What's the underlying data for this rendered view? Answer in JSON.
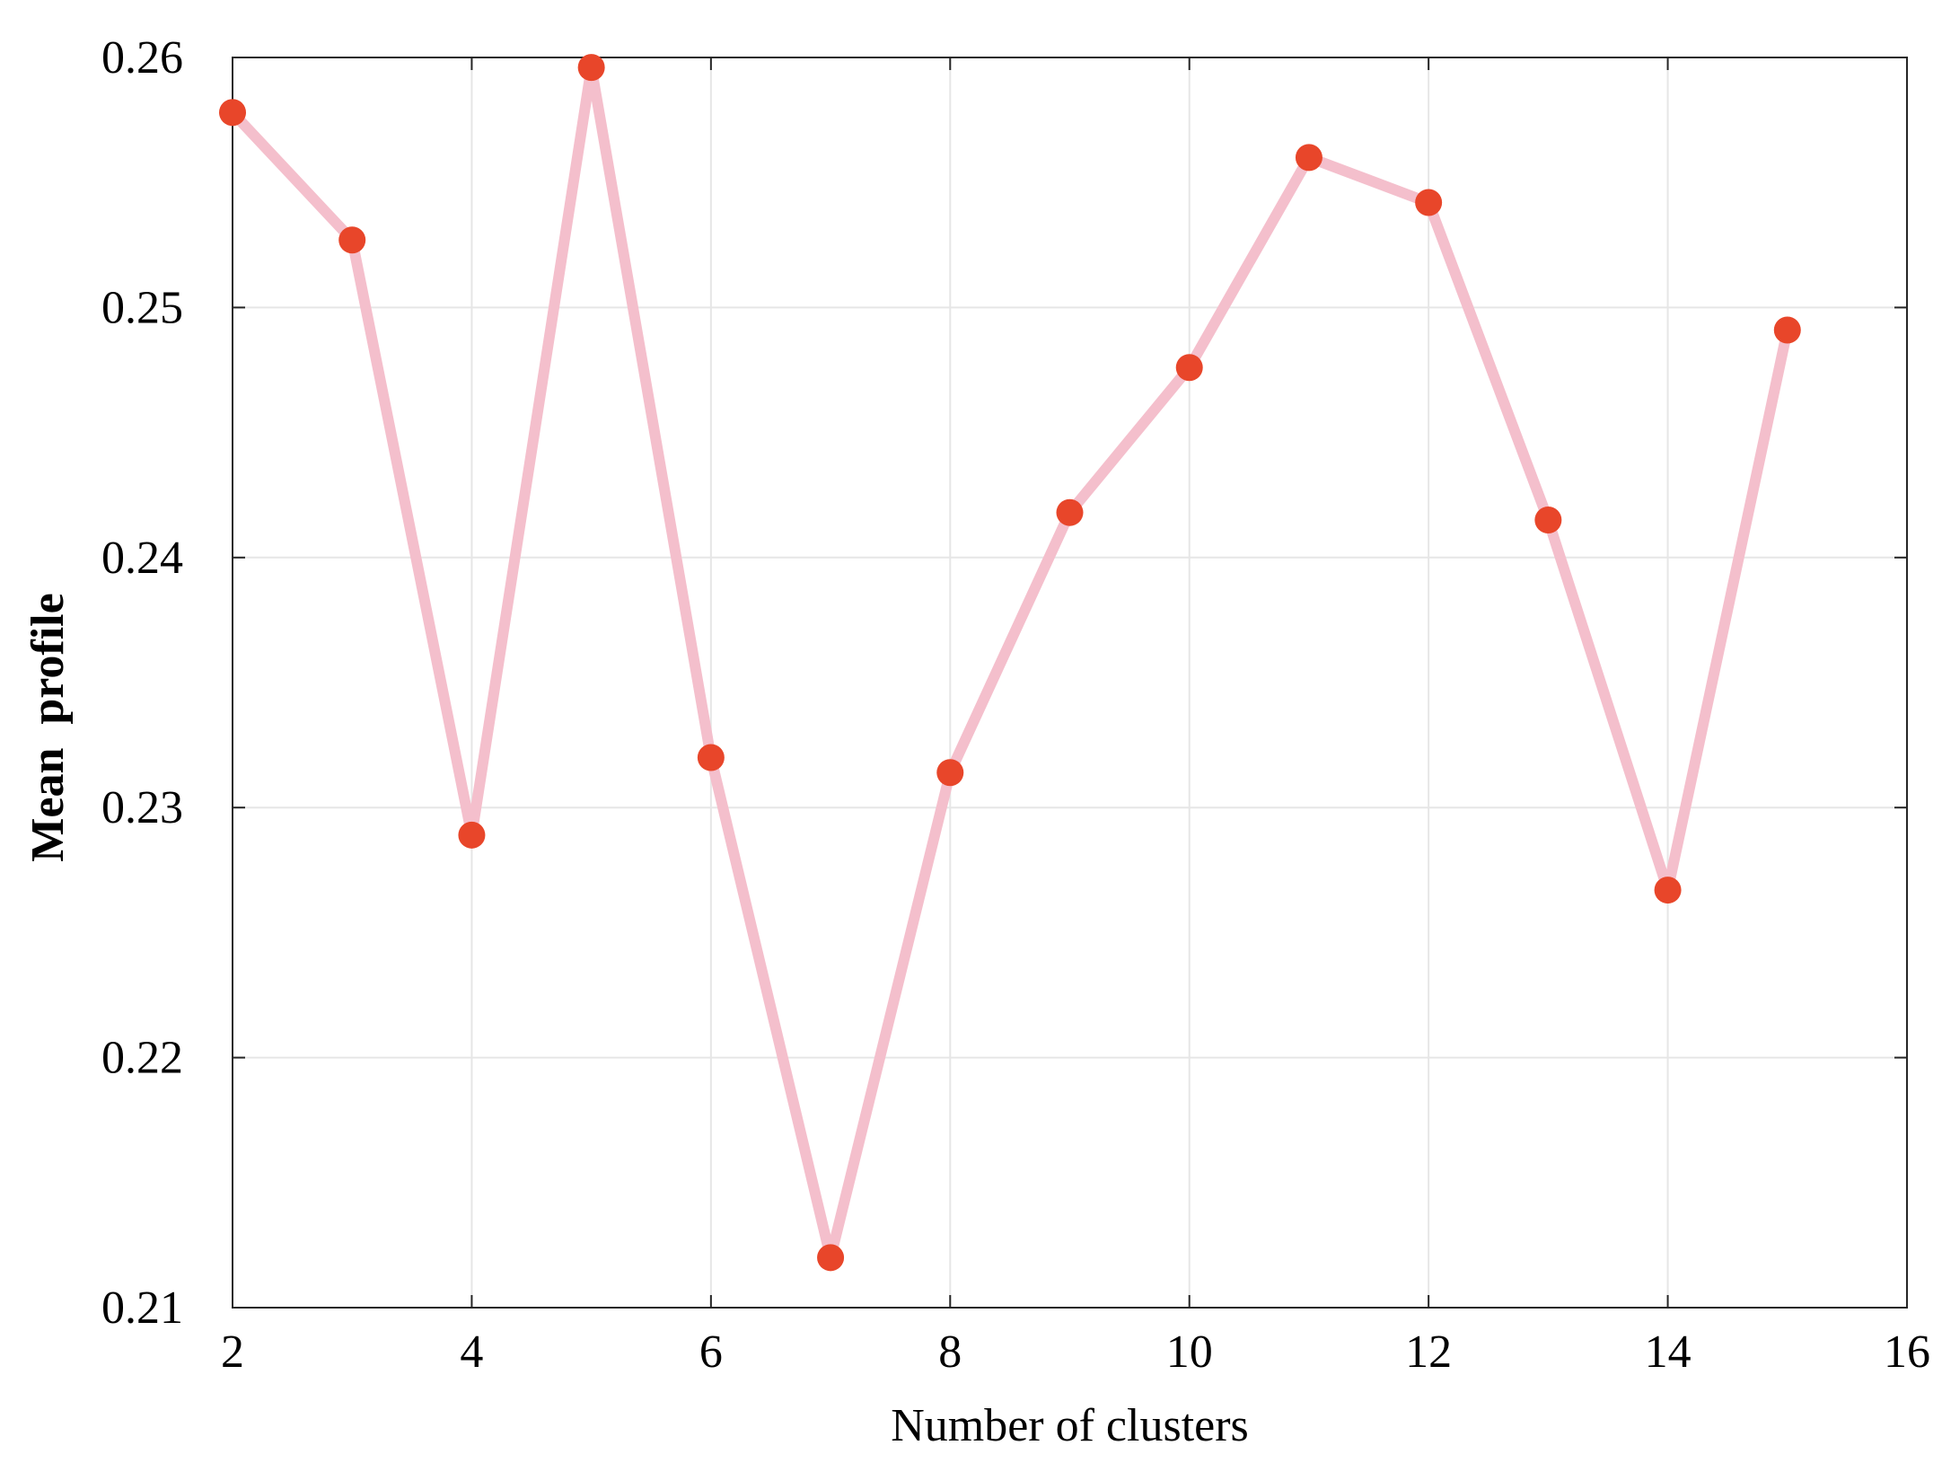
{
  "chart_data": {
    "type": "line",
    "title": "",
    "xlabel": "Number of clusters",
    "ylabel": "Mean  profile",
    "xlim": [
      2,
      16
    ],
    "ylim": [
      0.21,
      0.26
    ],
    "xticks": [
      2,
      4,
      6,
      8,
      10,
      12,
      14,
      16
    ],
    "xtick_labels": [
      "2",
      "4",
      "6",
      "8",
      "10",
      "12",
      "14",
      "16"
    ],
    "yticks": [
      0.21,
      0.22,
      0.23,
      0.24,
      0.25,
      0.26
    ],
    "ytick_labels": [
      "0.21",
      "0.22",
      "0.23",
      "0.24",
      "0.25",
      "0.26"
    ],
    "grid": true,
    "legend": "none",
    "series": [
      {
        "line_color": "#f4bfcc",
        "marker_color": "#e8462a",
        "x": [
          2,
          3,
          4,
          5,
          6,
          7,
          8,
          9,
          10,
          11,
          12,
          13,
          14,
          15
        ],
        "y": [
          0.2578,
          0.2527,
          0.2289,
          0.2596,
          0.232,
          0.212,
          0.2314,
          0.2418,
          0.2476,
          0.256,
          0.2542,
          0.2415,
          0.2267,
          0.2491
        ]
      }
    ]
  }
}
